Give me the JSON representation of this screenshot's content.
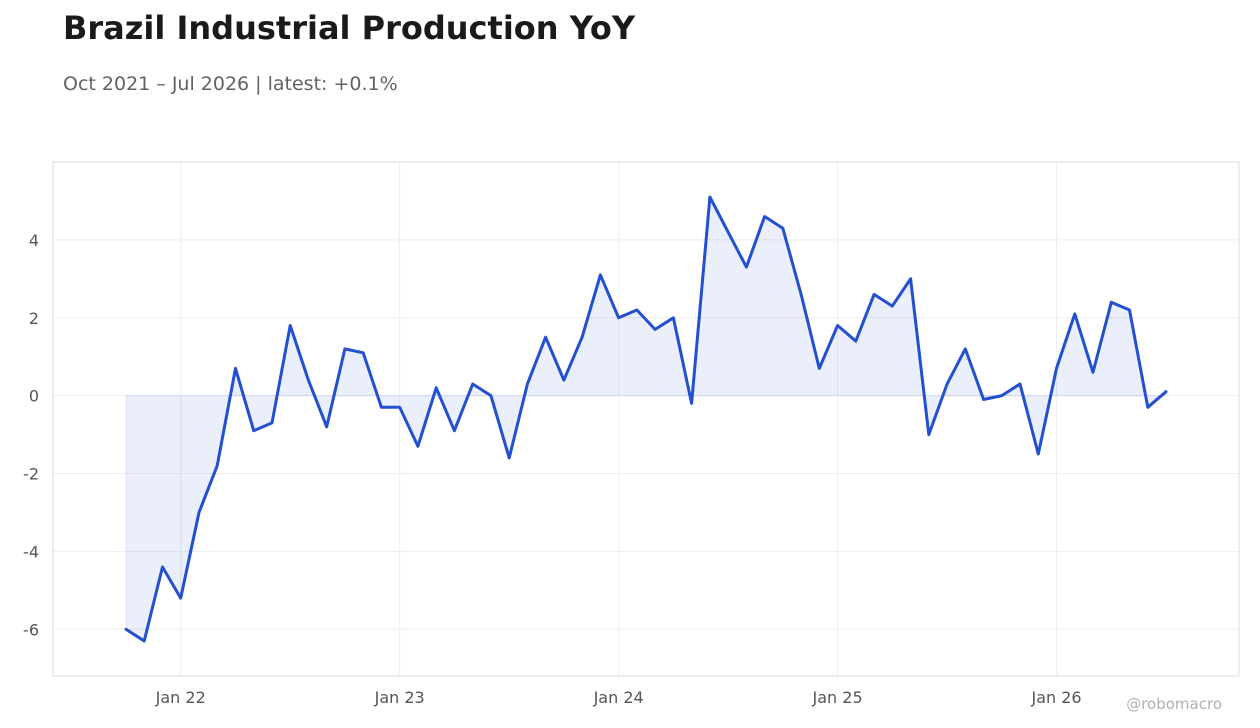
{
  "header": {
    "title": "Brazil Industrial Production YoY",
    "subtitle": "Oct 2021 – Jul 2026 | latest: +0.1%"
  },
  "watermark": "@robomacro",
  "colors": {
    "line": "#2250d0",
    "fill": "#2250d0",
    "grid": "#eeeeee",
    "frame": "#dddddd",
    "text": "#555555"
  },
  "chart_data": {
    "type": "area",
    "title": "Brazil Industrial Production YoY",
    "subtitle": "Oct 2021 – Jul 2026 | latest: +0.1%",
    "xlabel": "",
    "ylabel": "",
    "grid": true,
    "xlim": [
      "2021-06",
      "2026-11"
    ],
    "ylim": [
      -7.2,
      6.0
    ],
    "x_ticks": [
      "2022-01",
      "2023-01",
      "2024-01",
      "2025-01",
      "2026-01"
    ],
    "x_tick_labels": [
      "Jan 22",
      "Jan 23",
      "Jan 24",
      "Jan 25",
      "Jan 26"
    ],
    "y_ticks": [
      -6,
      -4,
      -2,
      0,
      2,
      4
    ],
    "y_tick_labels": [
      "-6",
      "-4",
      "-2",
      "0",
      "2",
      "4"
    ],
    "series": [
      {
        "x": [
          "2021-10",
          "2021-11",
          "2021-12",
          "2022-01",
          "2022-02",
          "2022-03",
          "2022-04",
          "2022-05",
          "2022-06",
          "2022-07",
          "2022-08",
          "2022-09",
          "2022-10",
          "2022-11",
          "2022-12",
          "2023-01",
          "2023-02",
          "2023-03",
          "2023-04",
          "2023-05",
          "2023-06",
          "2023-07",
          "2023-08",
          "2023-09",
          "2023-10",
          "2023-11",
          "2023-12",
          "2024-01",
          "2024-02",
          "2024-03",
          "2024-04",
          "2024-05",
          "2024-06",
          "2024-07",
          "2024-08",
          "2024-09",
          "2024-10",
          "2024-11",
          "2024-12",
          "2025-01",
          "2025-02",
          "2025-03",
          "2025-04",
          "2025-05",
          "2025-06",
          "2025-07",
          "2025-08",
          "2025-09",
          "2025-10",
          "2025-11",
          "2025-12",
          "2026-01",
          "2026-02",
          "2026-03",
          "2026-04",
          "2026-05",
          "2026-06",
          "2026-07"
        ],
        "values": [
          -6.0,
          -6.3,
          -4.4,
          -5.2,
          -3.0,
          -1.8,
          0.7,
          -0.9,
          -0.7,
          1.8,
          0.4,
          -0.8,
          1.2,
          1.1,
          -0.3,
          -0.3,
          -1.3,
          0.2,
          -0.9,
          0.3,
          0.0,
          -1.6,
          0.3,
          1.5,
          0.4,
          1.5,
          3.1,
          2.0,
          2.2,
          1.7,
          2.0,
          -0.2,
          5.1,
          4.2,
          3.3,
          4.6,
          4.3,
          2.6,
          0.7,
          1.8,
          1.4,
          2.6,
          2.3,
          3.0,
          -1.0,
          0.3,
          1.2,
          -0.1,
          0.0,
          0.3,
          -1.5,
          0.7,
          2.1,
          0.6,
          2.4,
          2.2,
          -0.3,
          0.1
        ]
      }
    ]
  }
}
